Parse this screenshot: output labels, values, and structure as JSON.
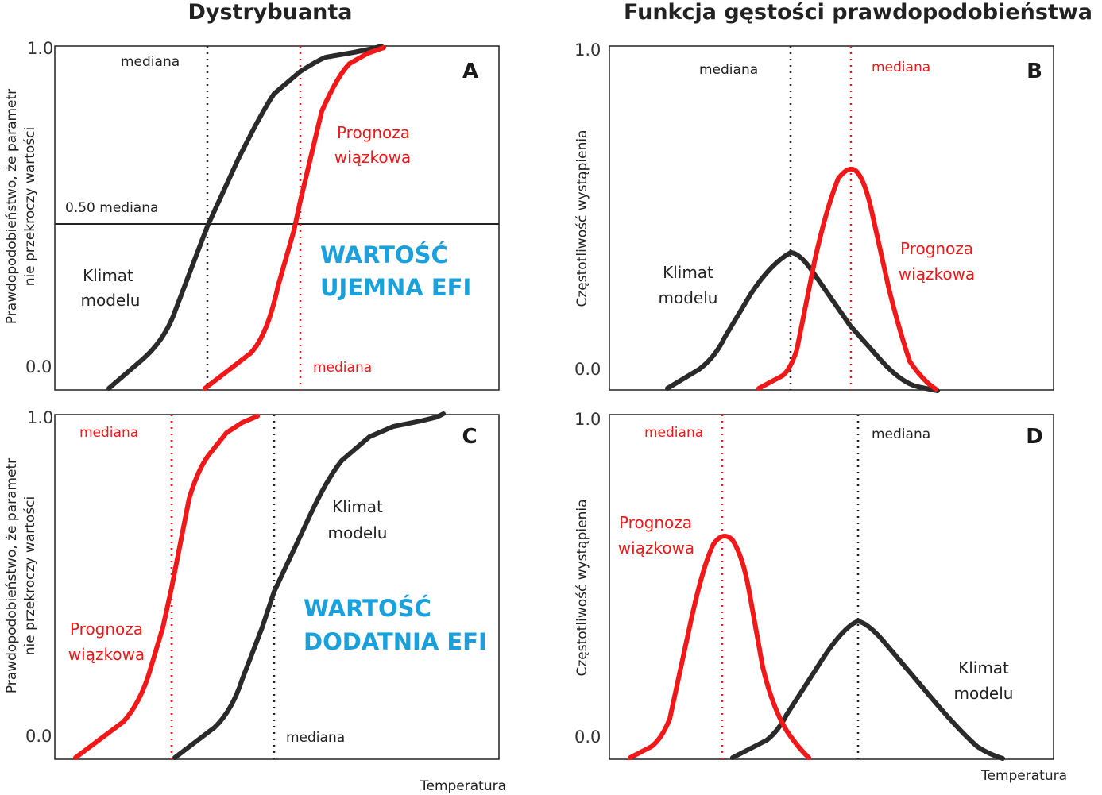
{
  "colors": {
    "climate": "#2a2a2a",
    "ensemble": "#f01818",
    "efi_text": "#1aa0dd"
  },
  "titles": {
    "left": "Dystrybuanta",
    "right": "Funkcja gęstości prawdopodobieństwa"
  },
  "x_axis_label": "Temperatura",
  "cdf_y_label": [
    "Prawdopodobieństwo, że parametr",
    "nie przekroczy wartości"
  ],
  "pdf_y_label": "Częstotliwość wystąpienia",
  "tick_top": "1.0",
  "tick_bottom": "0.0",
  "median_label": "mediana",
  "half_median_label": "0.50 mediana",
  "climate_label": [
    "Klimat",
    "modelu"
  ],
  "ensemble_label": [
    "Prognoza",
    "wiązkowa"
  ],
  "panels": {
    "A": {
      "letter": "A",
      "efi": [
        "WARTOŚĆ",
        "UJEMNA EFI"
      ]
    },
    "B": {
      "letter": "B"
    },
    "C": {
      "letter": "C",
      "efi": [
        "WARTOŚĆ",
        "DODATNIA EFI"
      ]
    },
    "D": {
      "letter": "D"
    }
  }
}
